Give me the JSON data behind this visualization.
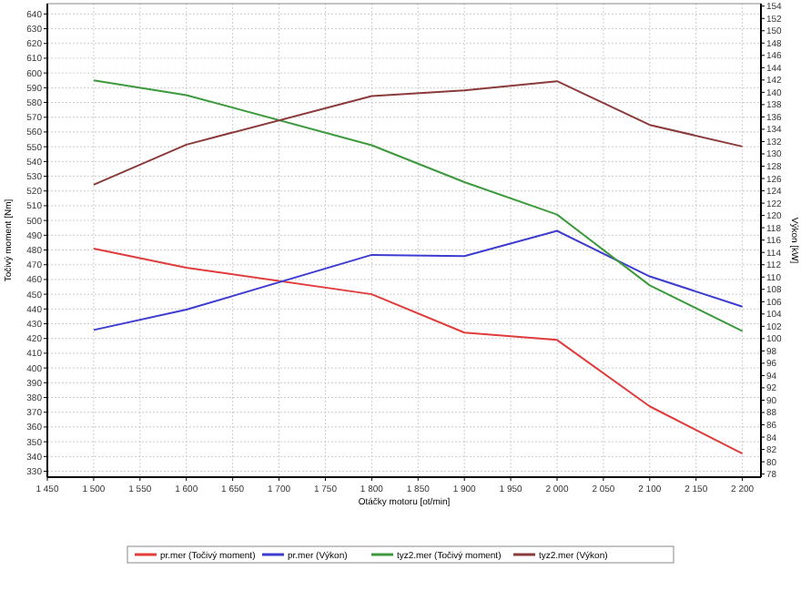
{
  "chart_data": {
    "type": "line",
    "xlabel": "Otáčky motoru [ot/min]",
    "ylabel": "Točivý moment [Nm]",
    "y2label": "Výkon [kW]",
    "x": [
      1500,
      1600,
      1800,
      1900,
      2000,
      2100,
      2200
    ],
    "series": [
      {
        "name": "pr.mer (Točivý moment)",
        "color": "#e03c3c",
        "values": [
          481,
          468,
          450,
          424,
          419,
          374,
          342
        ]
      },
      {
        "name": "pr.mer (Výkon)",
        "color": "#3c3cd0",
        "values": [
          101.4,
          104.7,
          113.6,
          113.4,
          117.5,
          110.1,
          105.2
        ],
        "axis": "y2"
      },
      {
        "name": "tyz2.mer (Točivý moment)",
        "color": "#3c9a3c",
        "values": [
          595,
          585,
          551,
          526,
          504,
          456,
          425
        ]
      },
      {
        "name": "tyz2.mer (Výkon)",
        "color": "#8b3a3a",
        "values": [
          125,
          131.5,
          139.4,
          140.3,
          141.8,
          134.7,
          131.2
        ],
        "axis": "y2"
      }
    ],
    "xlim": [
      1450,
      2220
    ],
    "xticks": [
      {
        "value": 1450,
        "label": "1 450"
      },
      {
        "value": 1500,
        "label": "1 500"
      },
      {
        "value": 1550,
        "label": "1 550"
      },
      {
        "value": 1600,
        "label": "1 600"
      },
      {
        "value": 1650,
        "label": "1 650"
      },
      {
        "value": 1700,
        "label": "1 700"
      },
      {
        "value": 1750,
        "label": "1 750"
      },
      {
        "value": 1800,
        "label": "1 800"
      },
      {
        "value": 1850,
        "label": "1 850"
      },
      {
        "value": 1900,
        "label": "1 900"
      },
      {
        "value": 1950,
        "label": "1 950"
      },
      {
        "value": 2000,
        "label": "2 000"
      },
      {
        "value": 2050,
        "label": "2 050"
      },
      {
        "value": 2100,
        "label": "2 100"
      },
      {
        "value": 2150,
        "label": "2 150"
      },
      {
        "value": 2200,
        "label": "2 200"
      }
    ],
    "ylim": [
      326,
      647
    ],
    "yticks": [
      330,
      340,
      350,
      360,
      370,
      380,
      390,
      400,
      410,
      420,
      430,
      440,
      450,
      460,
      470,
      480,
      490,
      500,
      510,
      520,
      530,
      540,
      550,
      560,
      570,
      580,
      590,
      600,
      610,
      620,
      630,
      640
    ],
    "y2lim": [
      77.5,
      154.4
    ],
    "y2ticks": [
      78,
      80,
      82,
      84,
      86,
      88,
      90,
      92,
      94,
      96,
      98,
      100,
      102,
      104,
      106,
      108,
      110,
      112,
      114,
      116,
      118,
      120,
      122,
      124,
      126,
      128,
      130,
      132,
      134,
      136,
      138,
      140,
      142,
      144,
      146,
      148,
      150,
      152,
      154
    ],
    "grid": true,
    "legend": "bottom",
    "marker": "none",
    "line_style": "solid"
  }
}
